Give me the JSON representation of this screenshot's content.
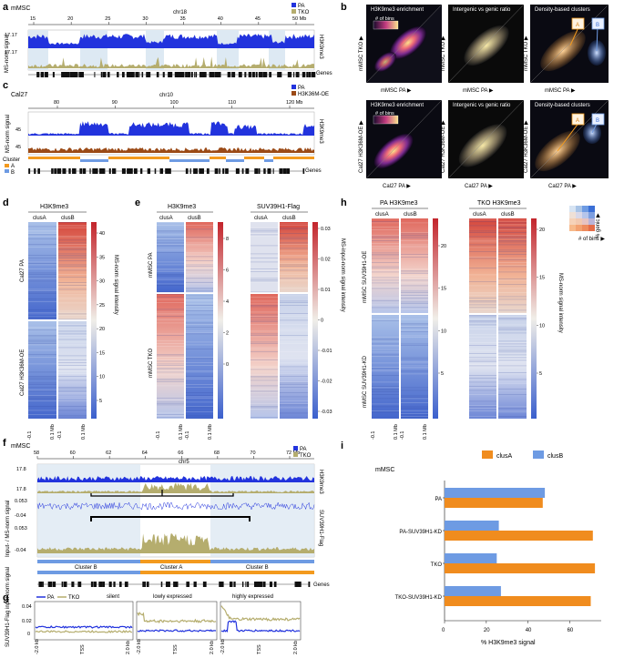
{
  "panels": {
    "a": {
      "letter": "a",
      "sample": "mMSC",
      "chrom": "chr18",
      "ticks": [
        "15",
        "20",
        "25",
        "30",
        "35",
        "40",
        "45",
        "50 Mb"
      ],
      "ylabel": "MS-norm signal",
      "track": "H3K9me3",
      "genes": "Genes",
      "legend": [
        {
          "name": "PA",
          "color": "#2233dd"
        },
        {
          "name": "TKO",
          "color": "#b5ad6e"
        }
      ],
      "yvals": [
        "17.17",
        "17.17"
      ]
    },
    "b": {
      "letter": "b",
      "row_titles": [
        "H3K9me3 enrichment",
        "Intergenic vs genic ratio",
        "Density-based clusters"
      ],
      "bins": "# of bins",
      "row1": {
        "ylabel": "mMSC TKO ▶",
        "xlabel": "mMSC PA ▶"
      },
      "row2": {
        "ylabel": "Cal27 H3K36M-OE ▶",
        "xlabel": "Cal27 PA ▶"
      },
      "clusters": [
        "A",
        "B"
      ]
    },
    "c": {
      "letter": "c",
      "sample": "Cal27",
      "chrom": "chr10",
      "ticks": [
        "80",
        "90",
        "100",
        "110",
        "120 Mb"
      ],
      "ylabel": "MS-norm signal",
      "track": "H3K9me3",
      "cluster": "Cluster",
      "clusterA": "A",
      "clusterB": "B",
      "genes": "Genes",
      "legend": [
        {
          "name": "PA",
          "color": "#2233dd"
        },
        {
          "name": "H3K36M-OE",
          "color": "#9b4a16"
        }
      ],
      "yvals": [
        "45",
        "45"
      ]
    },
    "d": {
      "letter": "d",
      "title": "H3K9me3",
      "cols": [
        "clusA",
        "clusB"
      ],
      "rows": [
        "Cal27 PA",
        "Cal27 H3K36M-OE"
      ],
      "xt": [
        "-0.1",
        "0.1 Mb",
        "-0.1",
        "0.1 Mb"
      ],
      "cbar": [
        "40",
        "35",
        "30",
        "25",
        "20",
        "15",
        "10",
        "5"
      ],
      "cbar_label": "MS-norm signal intensity"
    },
    "e": {
      "letter": "e",
      "groups": [
        "H3K9me3",
        "SUV39H1-Flag"
      ],
      "cols": [
        "clusA",
        "clusB"
      ],
      "rows": [
        "mMSC PA",
        "mMSC TKO"
      ],
      "cbar1": [
        "8",
        "6",
        "4",
        "2",
        "0"
      ],
      "cbar2": [
        "0.03",
        "0.02",
        "0.01",
        "0",
        "-0.01",
        "-0.02",
        "-0.03"
      ],
      "cbar_label": "MS-input-norm signal intensity",
      "xt": [
        "-0.1",
        "0.1 Mb",
        "-0.1",
        "0.1 Mb"
      ]
    },
    "f": {
      "letter": "f",
      "sample": "mMSC",
      "chrom": "chr5",
      "ticks": [
        "58",
        "60",
        "62",
        "64",
        "66",
        "68",
        "70",
        "72 Mb"
      ],
      "ylabel": "Input- / MS-norm signal",
      "tracks": [
        "H3K9me3",
        "SUV39H1-Flag"
      ],
      "yvals": [
        "17.8",
        "17.8",
        "0.053",
        "-0.04",
        "0.053",
        "-0.04"
      ],
      "clusters": [
        "Cluster B",
        "Cluster A",
        "Cluster B"
      ],
      "genes": "Genes",
      "legend": [
        {
          "name": "PA",
          "color": "#2233dd"
        },
        {
          "name": "TKO",
          "color": "#b5ad6e"
        }
      ]
    },
    "g": {
      "letter": "g",
      "legend": [
        "PA",
        "TKO"
      ],
      "titles": [
        "silent",
        "lowly expressed",
        "highly expressed"
      ],
      "ylabel": "SUV39H1-Flag input-norm signal",
      "yt": [
        "0.04",
        "0.02",
        "0"
      ],
      "xt": [
        "-2.0 kb",
        "TSS",
        "2.0 kb"
      ]
    },
    "h": {
      "letter": "h",
      "groups": [
        "PA H3K9me3",
        "TKO H3K9me3"
      ],
      "cols": [
        "clusA",
        "clusB"
      ],
      "rows": [
        "mMSC SUV39H1-OE",
        "mMSC SUV39H1-KD"
      ],
      "cbar": [
        "20",
        "15",
        "10",
        "5"
      ],
      "cbar_label": "MS-norm signal intensity",
      "xt": [
        "-0.1",
        "0.1 Mb",
        "-0.1",
        "0.1 Mb"
      ],
      "corner": {
        "genic": "% genic ▶",
        "bins": "# of bins ▶"
      }
    },
    "i": {
      "letter": "i",
      "sample": "mMSC",
      "xlabel": "% H3K9me3 signal"
    }
  },
  "chart_data": {
    "type": "bar",
    "title": "",
    "categories": [
      "PA",
      "PA-SUV39H1-KD",
      "TKO",
      "TKO-SUV39H1-KD"
    ],
    "series": [
      {
        "name": "clusA",
        "color": "#f08c1e",
        "values": [
          47,
          71,
          72,
          70
        ]
      },
      {
        "name": "clusB",
        "color": "#6e9be3",
        "values": [
          48,
          26,
          25,
          27
        ]
      }
    ],
    "xlabel": "% H3K9me3 signal",
    "xticks": [
      "0",
      "20",
      "40",
      "60"
    ],
    "xlim": [
      0,
      75
    ],
    "orientation": "horizontal",
    "legend": "top"
  }
}
